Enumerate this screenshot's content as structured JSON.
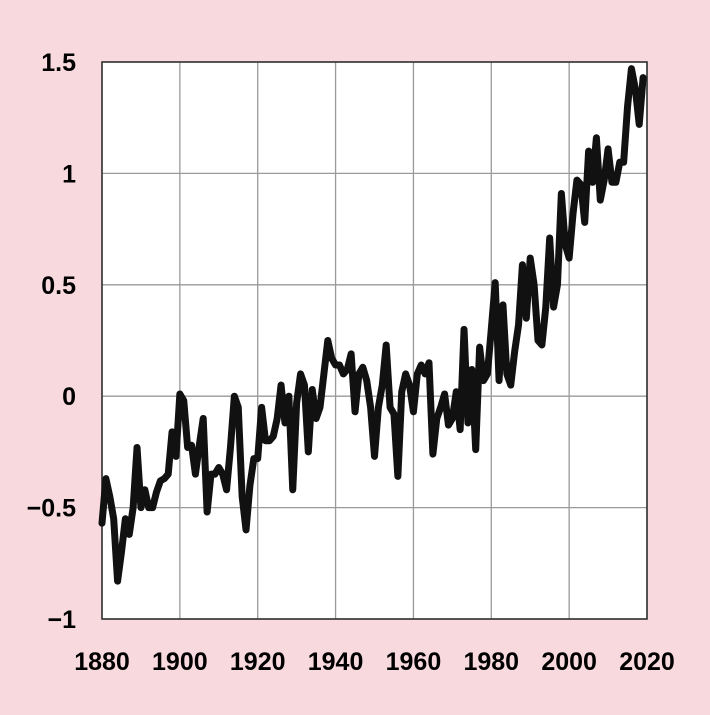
{
  "chart_data": {
    "type": "line",
    "title": "",
    "xlabel": "",
    "ylabel": "",
    "xlim": [
      1880,
      2020
    ],
    "ylim": [
      -1,
      1.5
    ],
    "x_ticks": [
      1880,
      1900,
      1920,
      1940,
      1960,
      1980,
      2000,
      2020
    ],
    "y_ticks": [
      1.5,
      1,
      0.5,
      0,
      -0.5,
      -1
    ],
    "x_tick_labels": [
      "1880",
      "1900",
      "1920",
      "1940",
      "1960",
      "1980",
      "2000",
      "2020"
    ],
    "y_tick_labels": [
      "1.5",
      "1",
      "0.5",
      "0",
      "−0.5",
      "−1"
    ],
    "grid": true,
    "background_color": "#f7d9de",
    "plot_background_color": "#ffffff",
    "line_color": "#111111",
    "series": [
      {
        "x": [
          1880,
          1881,
          1882,
          1883,
          1884,
          1885,
          1886,
          1887,
          1888,
          1889,
          1890,
          1891,
          1892,
          1893,
          1894,
          1895,
          1896,
          1897,
          1898,
          1899,
          1900,
          1901,
          1902,
          1903,
          1904,
          1905,
          1906,
          1907,
          1908,
          1909,
          1910,
          1911,
          1912,
          1913,
          1914,
          1915,
          1916,
          1917,
          1918,
          1919,
          1920,
          1921,
          1922,
          1923,
          1924,
          1925,
          1926,
          1927,
          1928,
          1929,
          1930,
          1931,
          1932,
          1933,
          1934,
          1935,
          1936,
          1937,
          1938,
          1939,
          1940,
          1941,
          1942,
          1943,
          1944,
          1945,
          1946,
          1947,
          1948,
          1949,
          1950,
          1951,
          1952,
          1953,
          1954,
          1955,
          1956,
          1957,
          1958,
          1959,
          1960,
          1961,
          1962,
          1963,
          1964,
          1965,
          1966,
          1967,
          1968,
          1969,
          1970,
          1971,
          1972,
          1973,
          1974,
          1975,
          1976,
          1977,
          1978,
          1979,
          1980,
          1981,
          1982,
          1983,
          1984,
          1985,
          1986,
          1987,
          1988,
          1989,
          1990,
          1991,
          1992,
          1993,
          1994,
          1995,
          1996,
          1997,
          1998,
          1999,
          2000,
          2001,
          2002,
          2003,
          2004,
          2005,
          2006,
          2007,
          2008,
          2009,
          2010,
          2011,
          2012,
          2013,
          2014,
          2015,
          2016,
          2017,
          2018,
          2019
        ],
        "values": [
          -0.57,
          -0.37,
          -0.45,
          -0.55,
          -0.83,
          -0.7,
          -0.55,
          -0.62,
          -0.5,
          -0.23,
          -0.5,
          -0.42,
          -0.5,
          -0.5,
          -0.43,
          -0.38,
          -0.37,
          -0.35,
          -0.16,
          -0.27,
          0.01,
          -0.02,
          -0.23,
          -0.22,
          -0.35,
          -0.22,
          -0.1,
          -0.52,
          -0.35,
          -0.35,
          -0.32,
          -0.35,
          -0.42,
          -0.23,
          0.0,
          -0.05,
          -0.45,
          -0.6,
          -0.4,
          -0.28,
          -0.28,
          -0.05,
          -0.2,
          -0.2,
          -0.18,
          -0.1,
          0.05,
          -0.12,
          0.0,
          -0.42,
          -0.03,
          0.1,
          0.05,
          -0.25,
          0.03,
          -0.1,
          -0.05,
          0.1,
          0.25,
          0.17,
          0.14,
          0.14,
          0.1,
          0.12,
          0.19,
          -0.07,
          0.1,
          0.13,
          0.07,
          -0.05,
          -0.27,
          -0.05,
          0.05,
          0.23,
          -0.05,
          -0.08,
          -0.36,
          0.02,
          0.1,
          0.05,
          -0.07,
          0.1,
          0.14,
          0.1,
          0.15,
          -0.26,
          -0.1,
          -0.05,
          0.01,
          -0.13,
          -0.1,
          0.02,
          -0.15,
          0.3,
          -0.12,
          0.12,
          -0.24,
          0.22,
          0.07,
          0.1,
          0.3,
          0.51,
          0.07,
          0.41,
          0.1,
          0.05,
          0.2,
          0.32,
          0.59,
          0.35,
          0.62,
          0.5,
          0.25,
          0.23,
          0.4,
          0.71,
          0.4,
          0.5,
          0.91,
          0.68,
          0.62,
          0.82,
          0.97,
          0.95,
          0.78,
          1.1,
          0.96,
          1.16,
          0.88,
          0.97,
          1.11,
          0.96,
          0.96,
          1.05,
          1.05,
          1.3,
          1.47,
          1.38,
          1.22,
          1.43
        ]
      }
    ]
  }
}
